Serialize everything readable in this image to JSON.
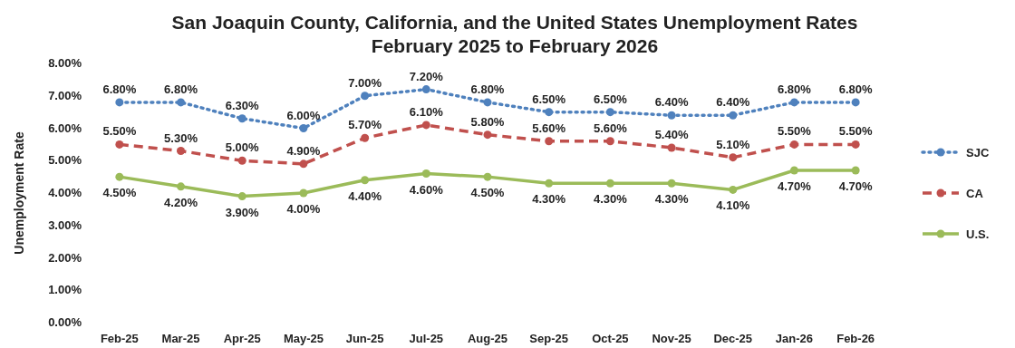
{
  "chart_data": {
    "type": "line",
    "title": "San Joaquin County, California, and the United States Unemployment Rates",
    "subtitle": "February 2025 to February 2026",
    "ylabel": "Unemployment Rate",
    "categories": [
      "Feb-25",
      "Mar-25",
      "Apr-25",
      "May-25",
      "Jun-25",
      "Jul-25",
      "Aug-25",
      "Sep-25",
      "Oct-25",
      "Nov-25",
      "Dec-25",
      "Jan-26",
      "Feb-26"
    ],
    "series": [
      {
        "name": "SJC",
        "color": "#4f81bd",
        "line_style": "dotted",
        "values": [
          6.8,
          6.8,
          6.3,
          6.0,
          7.0,
          7.2,
          6.8,
          6.5,
          6.5,
          6.4,
          6.4,
          6.8,
          6.8
        ],
        "value_labels": [
          "6.80%",
          "6.80%",
          "6.30%",
          "6.00%",
          "7.00%",
          "7.20%",
          "6.80%",
          "6.50%",
          "6.50%",
          "6.40%",
          "6.40%",
          "6.80%",
          "6.80%"
        ]
      },
      {
        "name": "CA",
        "color": "#c0504d",
        "line_style": "dashed",
        "values": [
          5.5,
          5.3,
          5.0,
          4.9,
          5.7,
          6.1,
          5.8,
          5.6,
          5.6,
          5.4,
          5.1,
          5.5,
          5.5
        ],
        "value_labels": [
          "5.50%",
          "5.30%",
          "5.00%",
          "4.90%",
          "5.70%",
          "6.10%",
          "5.80%",
          "5.60%",
          "5.60%",
          "5.40%",
          "5.10%",
          "5.50%",
          "5.50%"
        ]
      },
      {
        "name": "U.S.",
        "color": "#9bbb59",
        "line_style": "solid",
        "values": [
          4.5,
          4.2,
          3.9,
          4.0,
          4.4,
          4.6,
          4.5,
          4.3,
          4.3,
          4.3,
          4.1,
          4.7,
          4.7
        ],
        "value_labels": [
          "4.50%",
          "4.20%",
          "3.90%",
          "4.00%",
          "4.40%",
          "4.60%",
          "4.50%",
          "4.30%",
          "4.30%",
          "4.30%",
          "4.10%",
          "4.70%",
          "4.70%"
        ]
      }
    ],
    "ylim": [
      0,
      8
    ],
    "yticks": [
      {
        "value": 0,
        "label": "0.00%"
      },
      {
        "value": 1,
        "label": "1.00%"
      },
      {
        "value": 2,
        "label": "2.00%"
      },
      {
        "value": 3,
        "label": "3.00%"
      },
      {
        "value": 4,
        "label": "4.00%"
      },
      {
        "value": 5,
        "label": "5.00%"
      },
      {
        "value": 6,
        "label": "6.00%"
      },
      {
        "value": 7,
        "label": "7.00%"
      },
      {
        "value": 8,
        "label": "8.00%"
      }
    ],
    "grid": false,
    "legend": "right",
    "marker": "circle"
  }
}
